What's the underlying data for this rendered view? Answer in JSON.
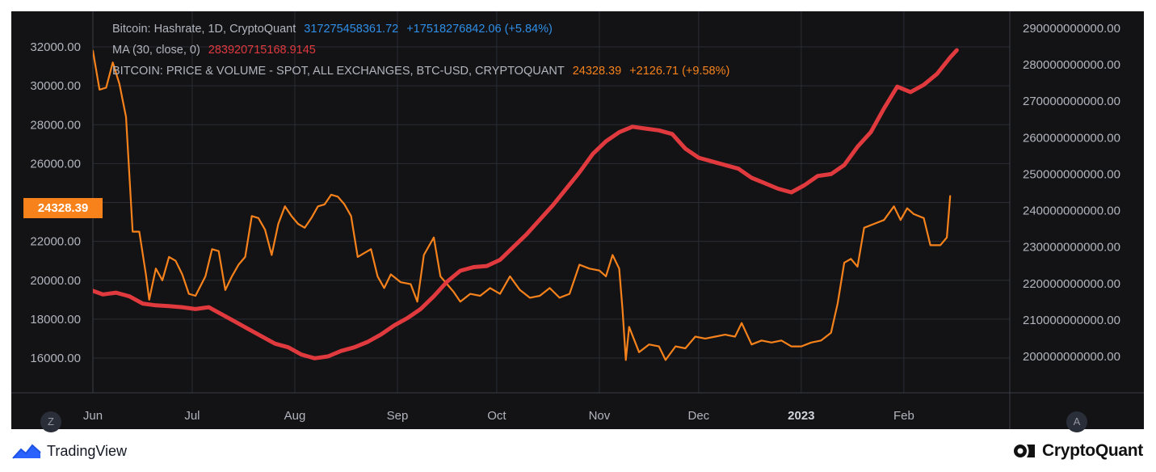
{
  "legend": {
    "hashrate": {
      "name": "Bitcoin: Hashrate, 1D, CryptoQuant",
      "value": "317275458361.72",
      "change": "+17518276842.06 (+5.84%)",
      "color": "#2f8fe8"
    },
    "ma": {
      "name": "MA (30, close, 0)",
      "value": "283920715168.9145",
      "color": "#e0393e"
    },
    "price": {
      "name": "BITCOIN: PRICE & VOLUME - SPOT, ALL EXCHANGES, BTC-USD, CRYPTOQUANT",
      "value": "24328.39",
      "change": "+2126.71 (+9.58%)",
      "color": "#f7821b"
    }
  },
  "price_tag": "24328.39",
  "buttons": {
    "left": "Z",
    "right": "A"
  },
  "branding": {
    "left": "TradingView",
    "right": "CryptoQuant"
  },
  "chart_data": {
    "type": "line",
    "x_tick_labels": [
      "Jun",
      "Jul",
      "Aug",
      "Sep",
      "Oct",
      "Nov",
      "Dec",
      "2023",
      "Feb"
    ],
    "left_axis": {
      "ticks": [
        "16000.00",
        "18000.00",
        "20000.00",
        "22000.00",
        "24000.00",
        "26000.00",
        "28000.00",
        "30000.00",
        "32000.00"
      ],
      "series": "price"
    },
    "right_axis": {
      "ticks": [
        "200000000000.00",
        "210000000000.00",
        "220000000000.00",
        "230000000000.00",
        "240000000000.00",
        "250000000000.00",
        "260000000000.00",
        "270000000000.00",
        "280000000000.00",
        "290000000000.00"
      ],
      "series": "ma"
    },
    "grid": true,
    "series": [
      {
        "name": "BITCOIN: PRICE & VOLUME - SPOT, ALL EXCHANGES, BTC-USD, CRYPTOQUANT",
        "axis": "left",
        "color": "#f7821b",
        "points": [
          [
            "2022-06-01",
            31800
          ],
          [
            "2022-06-03",
            29800
          ],
          [
            "2022-06-05",
            29900
          ],
          [
            "2022-06-07",
            31200
          ],
          [
            "2022-06-09",
            30100
          ],
          [
            "2022-06-11",
            28400
          ],
          [
            "2022-06-13",
            22500
          ],
          [
            "2022-06-15",
            22500
          ],
          [
            "2022-06-17",
            20300
          ],
          [
            "2022-06-18",
            19000
          ],
          [
            "2022-06-20",
            20600
          ],
          [
            "2022-06-22",
            20000
          ],
          [
            "2022-06-24",
            21200
          ],
          [
            "2022-06-26",
            21000
          ],
          [
            "2022-06-28",
            20300
          ],
          [
            "2022-06-30",
            19300
          ],
          [
            "2022-07-02",
            19200
          ],
          [
            "2022-07-05",
            20200
          ],
          [
            "2022-07-07",
            21600
          ],
          [
            "2022-07-09",
            21500
          ],
          [
            "2022-07-11",
            19500
          ],
          [
            "2022-07-13",
            20200
          ],
          [
            "2022-07-15",
            20800
          ],
          [
            "2022-07-17",
            21200
          ],
          [
            "2022-07-19",
            23300
          ],
          [
            "2022-07-21",
            23200
          ],
          [
            "2022-07-23",
            22600
          ],
          [
            "2022-07-25",
            21300
          ],
          [
            "2022-07-27",
            22900
          ],
          [
            "2022-07-29",
            23800
          ],
          [
            "2022-07-31",
            23300
          ],
          [
            "2022-08-02",
            22900
          ],
          [
            "2022-08-04",
            22700
          ],
          [
            "2022-08-06",
            23200
          ],
          [
            "2022-08-08",
            23800
          ],
          [
            "2022-08-10",
            23900
          ],
          [
            "2022-08-12",
            24400
          ],
          [
            "2022-08-14",
            24300
          ],
          [
            "2022-08-16",
            23900
          ],
          [
            "2022-08-18",
            23300
          ],
          [
            "2022-08-20",
            21200
          ],
          [
            "2022-08-22",
            21400
          ],
          [
            "2022-08-24",
            21600
          ],
          [
            "2022-08-26",
            20200
          ],
          [
            "2022-08-28",
            19600
          ],
          [
            "2022-08-30",
            20300
          ],
          [
            "2022-09-02",
            19900
          ],
          [
            "2022-09-05",
            19800
          ],
          [
            "2022-09-07",
            18900
          ],
          [
            "2022-09-09",
            21300
          ],
          [
            "2022-09-12",
            22200
          ],
          [
            "2022-09-14",
            20200
          ],
          [
            "2022-09-16",
            19800
          ],
          [
            "2022-09-18",
            19400
          ],
          [
            "2022-09-20",
            18900
          ],
          [
            "2022-09-23",
            19300
          ],
          [
            "2022-09-26",
            19200
          ],
          [
            "2022-09-29",
            19600
          ],
          [
            "2022-10-02",
            19300
          ],
          [
            "2022-10-05",
            20200
          ],
          [
            "2022-10-08",
            19500
          ],
          [
            "2022-10-11",
            19100
          ],
          [
            "2022-10-14",
            19200
          ],
          [
            "2022-10-17",
            19600
          ],
          [
            "2022-10-20",
            19100
          ],
          [
            "2022-10-23",
            19300
          ],
          [
            "2022-10-26",
            20800
          ],
          [
            "2022-10-29",
            20600
          ],
          [
            "2022-11-01",
            20500
          ],
          [
            "2022-11-03",
            20200
          ],
          [
            "2022-11-05",
            21300
          ],
          [
            "2022-11-07",
            20600
          ],
          [
            "2022-11-08",
            18500
          ],
          [
            "2022-11-09",
            15900
          ],
          [
            "2022-11-10",
            17600
          ],
          [
            "2022-11-13",
            16300
          ],
          [
            "2022-11-16",
            16700
          ],
          [
            "2022-11-19",
            16600
          ],
          [
            "2022-11-21",
            15900
          ],
          [
            "2022-11-24",
            16600
          ],
          [
            "2022-11-27",
            16500
          ],
          [
            "2022-11-30",
            17100
          ],
          [
            "2022-12-03",
            17000
          ],
          [
            "2022-12-06",
            17100
          ],
          [
            "2022-12-09",
            17200
          ],
          [
            "2022-12-12",
            17100
          ],
          [
            "2022-12-14",
            17800
          ],
          [
            "2022-12-17",
            16700
          ],
          [
            "2022-12-20",
            16900
          ],
          [
            "2022-12-23",
            16800
          ],
          [
            "2022-12-26",
            16900
          ],
          [
            "2022-12-29",
            16600
          ],
          [
            "2023-01-01",
            16600
          ],
          [
            "2023-01-04",
            16800
          ],
          [
            "2023-01-07",
            16900
          ],
          [
            "2023-01-10",
            17300
          ],
          [
            "2023-01-12",
            18800
          ],
          [
            "2023-01-14",
            20900
          ],
          [
            "2023-01-16",
            21100
          ],
          [
            "2023-01-18",
            20700
          ],
          [
            "2023-01-20",
            22700
          ],
          [
            "2023-01-23",
            22900
          ],
          [
            "2023-01-26",
            23100
          ],
          [
            "2023-01-29",
            23800
          ],
          [
            "2023-01-31",
            23100
          ],
          [
            "2023-02-02",
            23700
          ],
          [
            "2023-02-04",
            23400
          ],
          [
            "2023-02-07",
            23200
          ],
          [
            "2023-02-09",
            21800
          ],
          [
            "2023-02-12",
            21800
          ],
          [
            "2023-02-14",
            22200
          ],
          [
            "2023-02-15",
            24328
          ]
        ]
      },
      {
        "name": "MA (30, close, 0)",
        "axis": "right",
        "color": "#e0393e",
        "points": [
          [
            "2022-06-01",
            218000000000
          ],
          [
            "2022-06-04",
            217000000000
          ],
          [
            "2022-06-08",
            217500000000
          ],
          [
            "2022-06-12",
            216500000000
          ],
          [
            "2022-06-16",
            214500000000
          ],
          [
            "2022-06-20",
            214000000000
          ],
          [
            "2022-06-24",
            213800000000
          ],
          [
            "2022-06-28",
            213500000000
          ],
          [
            "2022-07-02",
            213000000000
          ],
          [
            "2022-07-06",
            213500000000
          ],
          [
            "2022-07-10",
            211500000000
          ],
          [
            "2022-07-14",
            209500000000
          ],
          [
            "2022-07-18",
            207500000000
          ],
          [
            "2022-07-22",
            205500000000
          ],
          [
            "2022-07-26",
            203500000000
          ],
          [
            "2022-07-30",
            202500000000
          ],
          [
            "2022-08-03",
            200500000000
          ],
          [
            "2022-08-07",
            199500000000
          ],
          [
            "2022-08-11",
            200000000000
          ],
          [
            "2022-08-15",
            201500000000
          ],
          [
            "2022-08-19",
            202500000000
          ],
          [
            "2022-08-23",
            204000000000
          ],
          [
            "2022-08-27",
            206000000000
          ],
          [
            "2022-08-31",
            208500000000
          ],
          [
            "2022-09-04",
            210500000000
          ],
          [
            "2022-09-08",
            213000000000
          ],
          [
            "2022-09-12",
            216500000000
          ],
          [
            "2022-09-16",
            220500000000
          ],
          [
            "2022-09-20",
            223500000000
          ],
          [
            "2022-09-24",
            224500000000
          ],
          [
            "2022-09-28",
            224800000000
          ],
          [
            "2022-10-02",
            226500000000
          ],
          [
            "2022-10-06",
            230000000000
          ],
          [
            "2022-10-10",
            233500000000
          ],
          [
            "2022-10-14",
            237500000000
          ],
          [
            "2022-10-18",
            241500000000
          ],
          [
            "2022-10-22",
            246000000000
          ],
          [
            "2022-10-26",
            250500000000
          ],
          [
            "2022-10-30",
            255500000000
          ],
          [
            "2022-11-03",
            259000000000
          ],
          [
            "2022-11-07",
            261500000000
          ],
          [
            "2022-11-11",
            263000000000
          ],
          [
            "2022-11-15",
            262500000000
          ],
          [
            "2022-11-19",
            262000000000
          ],
          [
            "2022-11-23",
            261000000000
          ],
          [
            "2022-11-27",
            257000000000
          ],
          [
            "2022-12-01",
            254500000000
          ],
          [
            "2022-12-05",
            253500000000
          ],
          [
            "2022-12-09",
            252500000000
          ],
          [
            "2022-12-13",
            251500000000
          ],
          [
            "2022-12-17",
            249000000000
          ],
          [
            "2022-12-21",
            247500000000
          ],
          [
            "2022-12-25",
            246000000000
          ],
          [
            "2022-12-29",
            245000000000
          ],
          [
            "2023-01-02",
            247000000000
          ],
          [
            "2023-01-06",
            249500000000
          ],
          [
            "2023-01-10",
            250000000000
          ],
          [
            "2023-01-14",
            252500000000
          ],
          [
            "2023-01-18",
            257500000000
          ],
          [
            "2023-01-22",
            261500000000
          ],
          [
            "2023-01-26",
            268000000000
          ],
          [
            "2023-01-30",
            274000000000
          ],
          [
            "2023-02-03",
            272500000000
          ],
          [
            "2023-02-07",
            274500000000
          ],
          [
            "2023-02-11",
            277500000000
          ],
          [
            "2023-02-15",
            282000000000
          ],
          [
            "2023-02-17",
            284000000000
          ]
        ]
      }
    ]
  }
}
